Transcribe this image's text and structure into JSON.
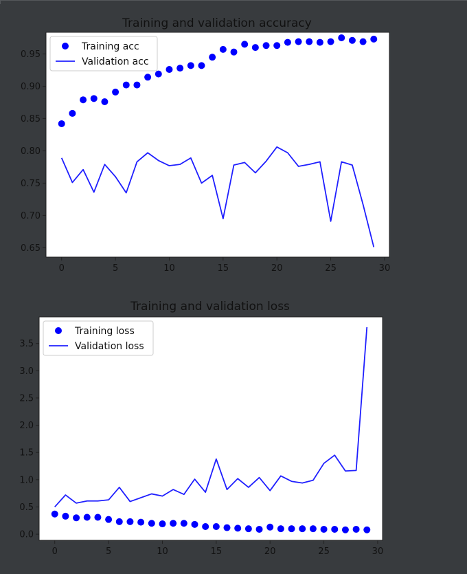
{
  "chart_data": [
    {
      "type": "line",
      "title": "Training and validation accuracy",
      "xlabel": "",
      "ylabel": "",
      "xlim": [
        -1.45,
        30.45
      ],
      "ylim": [
        0.6355,
        0.9835
      ],
      "xticks": [
        0,
        5,
        10,
        15,
        20,
        25,
        30
      ],
      "yticks": [
        0.65,
        0.7,
        0.75,
        0.8,
        0.85,
        0.9,
        0.95
      ],
      "ytick_labels": [
        "0.65",
        "0.70",
        "0.75",
        "0.80",
        "0.85",
        "0.90",
        "0.95"
      ],
      "grid": false,
      "legend_position": "upper-left",
      "x": [
        0,
        1,
        2,
        3,
        4,
        5,
        6,
        7,
        8,
        9,
        10,
        11,
        12,
        13,
        14,
        15,
        16,
        17,
        18,
        19,
        20,
        21,
        22,
        23,
        24,
        25,
        26,
        27,
        28,
        29
      ],
      "series": [
        {
          "name": "Training acc",
          "style": "dots",
          "color": "#0000ff",
          "values": [
            0.842,
            0.858,
            0.879,
            0.881,
            0.876,
            0.891,
            0.902,
            0.902,
            0.914,
            0.919,
            0.926,
            0.928,
            0.932,
            0.932,
            0.945,
            0.957,
            0.953,
            0.965,
            0.96,
            0.963,
            0.963,
            0.968,
            0.969,
            0.969,
            0.968,
            0.969,
            0.975,
            0.971,
            0.969,
            0.973
          ]
        },
        {
          "name": "Validation acc",
          "style": "line",
          "color": "#1f1fff",
          "values": [
            0.789,
            0.751,
            0.771,
            0.736,
            0.779,
            0.76,
            0.735,
            0.783,
            0.797,
            0.785,
            0.777,
            0.779,
            0.789,
            0.75,
            0.762,
            0.695,
            0.778,
            0.782,
            0.766,
            0.784,
            0.806,
            0.797,
            0.776,
            0.779,
            0.783,
            0.691,
            0.783,
            0.778,
            0.717,
            0.651
          ]
        }
      ]
    },
    {
      "type": "line",
      "title": "Training and validation loss",
      "xlabel": "",
      "ylabel": "",
      "xlim": [
        -1.45,
        30.45
      ],
      "ylim": [
        -0.1125,
        3.9885
      ],
      "xticks": [
        0,
        5,
        10,
        15,
        20,
        25,
        30
      ],
      "yticks": [
        0.0,
        0.5,
        1.0,
        1.5,
        2.0,
        2.5,
        3.0,
        3.5
      ],
      "ytick_labels": [
        "0.0",
        "0.5",
        "1.0",
        "1.5",
        "2.0",
        "2.5",
        "3.0",
        "3.5"
      ],
      "grid": false,
      "legend_position": "upper-left",
      "x": [
        0,
        1,
        2,
        3,
        4,
        5,
        6,
        7,
        8,
        9,
        10,
        11,
        12,
        13,
        14,
        15,
        16,
        17,
        18,
        19,
        20,
        21,
        22,
        23,
        24,
        25,
        26,
        27,
        28,
        29
      ],
      "series": [
        {
          "name": "Training loss",
          "style": "dots",
          "color": "#0000ff",
          "values": [
            0.37,
            0.33,
            0.3,
            0.31,
            0.31,
            0.27,
            0.23,
            0.23,
            0.22,
            0.2,
            0.19,
            0.2,
            0.2,
            0.18,
            0.14,
            0.14,
            0.12,
            0.11,
            0.1,
            0.09,
            0.13,
            0.1,
            0.1,
            0.1,
            0.1,
            0.09,
            0.09,
            0.08,
            0.09,
            0.08
          ]
        },
        {
          "name": "Validation loss",
          "style": "line",
          "color": "#1f1fff",
          "values": [
            0.5,
            0.72,
            0.57,
            0.61,
            0.61,
            0.63,
            0.86,
            0.6,
            0.67,
            0.74,
            0.7,
            0.82,
            0.73,
            1.01,
            0.77,
            1.38,
            0.82,
            1.02,
            0.86,
            1.04,
            0.8,
            1.07,
            0.97,
            0.94,
            0.99,
            1.3,
            1.45,
            1.16,
            1.17,
            3.8
          ]
        }
      ]
    }
  ]
}
